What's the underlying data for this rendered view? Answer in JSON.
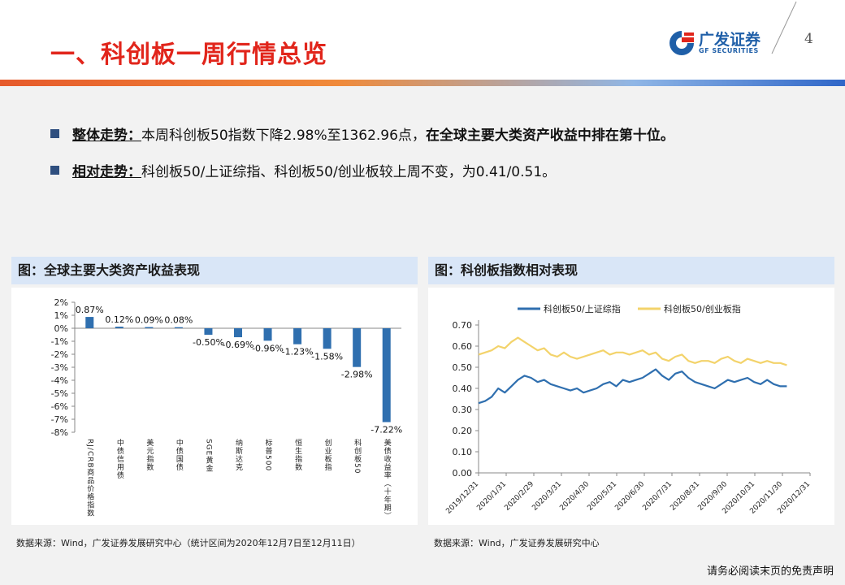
{
  "header": {
    "title": "一、科创板一周行情总览",
    "logo_cn": "广发证券",
    "logo_en": "GF SECURITIES",
    "page_number": "4"
  },
  "bullets": [
    {
      "label": "整体走势：",
      "text": "本周科创板50指数下降2.98%至1362.96点，",
      "bold_text": "在全球主要大类资产收益中排在第十位。"
    },
    {
      "label": "相对走势：",
      "text": "科创板50/上证综指、科创板50/创业板较上周不变，为0.41/0.51。",
      "bold_text": ""
    }
  ],
  "left_panel": {
    "heading": "图：全球主要大类资产收益表现",
    "source": "数据来源：Wind，广发证券发展研究中心（统计区间为2020年12月7日至12月11日）"
  },
  "right_panel": {
    "heading": "图：科创板指数相对表现",
    "source": "数据来源：Wind，广发证券发展研究中心"
  },
  "footer": "请务必阅读末页的免责声明",
  "colors": {
    "title_red": "#e1251b",
    "bar_blue": "#2f6faf",
    "line_blue": "#2f6faf",
    "line_yellow": "#f3d36b"
  },
  "chart_data": [
    {
      "type": "bar",
      "categories": [
        "RJ/CRB商品价格指数",
        "中债信用债",
        "美元指数",
        "中债国债",
        "SGE黄金",
        "纳斯达克",
        "标普500",
        "恒生指数",
        "创业板指",
        "科创板50",
        "美债收益率（十年期）"
      ],
      "values": [
        0.87,
        0.12,
        0.09,
        0.08,
        -0.5,
        -0.69,
        -0.96,
        -1.23,
        -1.58,
        -2.98,
        -7.22
      ],
      "data_labels": [
        "0.87%",
        "0.12%",
        "0.09%",
        "0.08%",
        "-0.50%",
        "-0.69%",
        "-0.96%",
        "-1.23%",
        "-1.58%",
        "-2.98%",
        "-7.22%"
      ],
      "yticks": [
        "2%",
        "1%",
        "0%",
        "-1%",
        "-2%",
        "-3%",
        "-4%",
        "-5%",
        "-6%",
        "-7%",
        "-8%"
      ],
      "ylim": [
        -8,
        2
      ]
    },
    {
      "type": "line",
      "series": [
        {
          "name": "科创板50/上证综指",
          "start": 0.33,
          "values": [
            0.33,
            0.34,
            0.36,
            0.4,
            0.38,
            0.41,
            0.44,
            0.46,
            0.45,
            0.43,
            0.44,
            0.42,
            0.41,
            0.4,
            0.39,
            0.4,
            0.38,
            0.39,
            0.4,
            0.42,
            0.43,
            0.41,
            0.44,
            0.43,
            0.44,
            0.45,
            0.47,
            0.49,
            0.46,
            0.44,
            0.47,
            0.48,
            0.45,
            0.43,
            0.42,
            0.41,
            0.4,
            0.42,
            0.44,
            0.43,
            0.44,
            0.45,
            0.43,
            0.42,
            0.44,
            0.42,
            0.41,
            0.41
          ]
        },
        {
          "name": "科创板50/创业板指",
          "values": [
            0.56,
            0.57,
            0.58,
            0.6,
            0.59,
            0.62,
            0.64,
            0.62,
            0.6,
            0.58,
            0.59,
            0.56,
            0.55,
            0.57,
            0.55,
            0.54,
            0.55,
            0.56,
            0.57,
            0.58,
            0.56,
            0.57,
            0.57,
            0.56,
            0.57,
            0.58,
            0.56,
            0.57,
            0.54,
            0.53,
            0.55,
            0.56,
            0.53,
            0.52,
            0.53,
            0.53,
            0.52,
            0.54,
            0.55,
            0.53,
            0.52,
            0.54,
            0.53,
            0.52,
            0.53,
            0.52,
            0.52,
            0.51
          ]
        }
      ],
      "x_ticks": [
        "2019/12/31",
        "2020/1/31",
        "2020/2/29",
        "2020/3/31",
        "2020/4/30",
        "2020/5/31",
        "2020/6/30",
        "2020/7/31",
        "2020/8/31",
        "2020/9/30",
        "2020/10/31",
        "2020/11/30",
        "2020/12/31"
      ],
      "yticks": [
        "0.70",
        "0.60",
        "0.50",
        "0.40",
        "0.30",
        "0.20",
        "0.10",
        "0.00"
      ],
      "ylim": [
        0,
        0.7
      ],
      "legend": "top"
    }
  ]
}
